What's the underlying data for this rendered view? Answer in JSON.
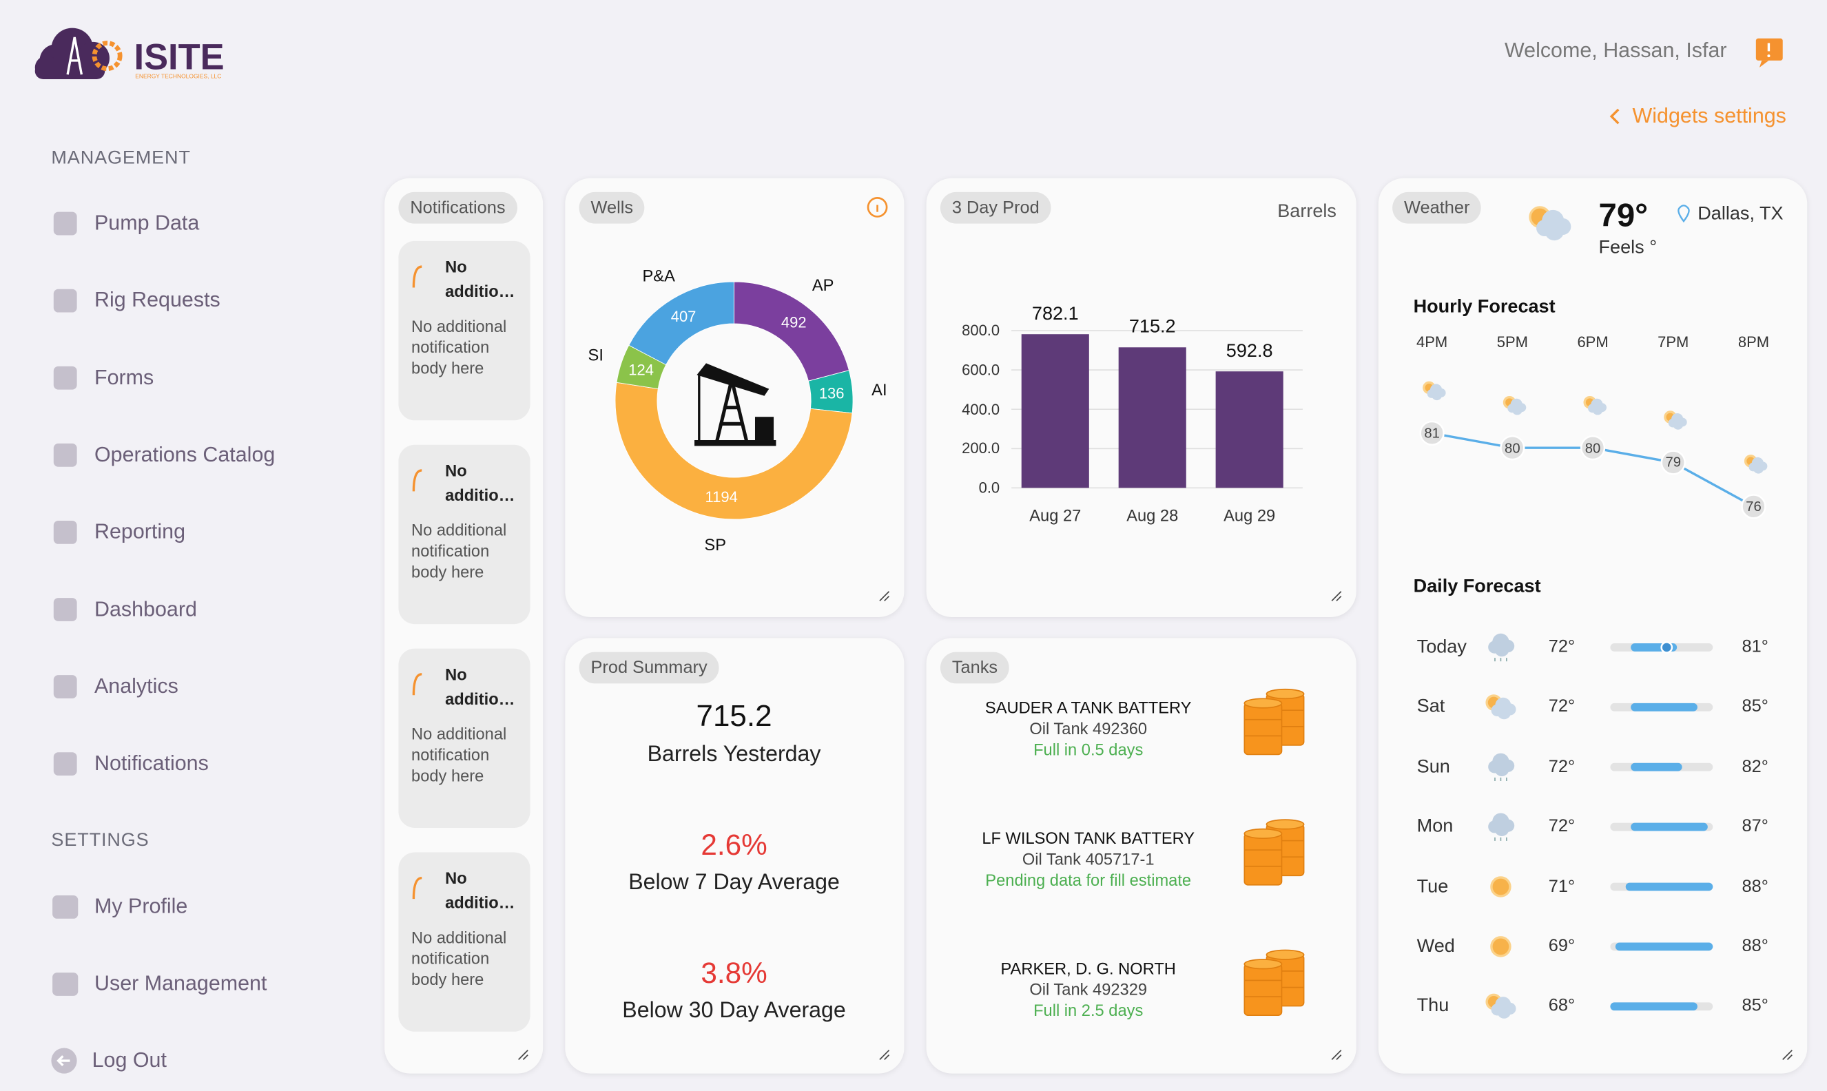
{
  "header": {
    "brand": "ISITE",
    "brand_subtitle": "ENERGY TECHNOLOGIES, LLC",
    "welcome": "Welcome, Hassan, Isfar",
    "widgets_settings": "Widgets settings"
  },
  "sidebar": {
    "management_title": "MANAGEMENT",
    "management_items": [
      "Pump Data",
      "Rig Requests",
      "Forms",
      "Operations Catalog",
      "Reporting",
      "Dashboard",
      "Analytics",
      "Notifications"
    ],
    "settings_title": "SETTINGS",
    "settings_items": [
      "My Profile",
      "User Management"
    ],
    "logout": "Log Out"
  },
  "notifications": {
    "title": "Notifications",
    "items": [
      {
        "title": "No additio…",
        "body": "No additional notification body here"
      },
      {
        "title": "No additio…",
        "body": "No additional notification body here"
      },
      {
        "title": "No additio…",
        "body": "No additional notification body here"
      },
      {
        "title": "No additio…",
        "body": "No additional notification body here"
      }
    ]
  },
  "wells": {
    "title": "Wells",
    "type": "pie",
    "categories": [
      "AP",
      "AI",
      "SP",
      "SI",
      "P&A"
    ],
    "values": [
      492,
      136,
      1194,
      124,
      407
    ],
    "colors": [
      "#7b3f9e",
      "#1ab5a5",
      "#fbb040",
      "#8bc34a",
      "#4ba3e0"
    ]
  },
  "prod": {
    "title": "3 Day Prod",
    "unit": "Barrels",
    "type": "bar",
    "categories": [
      "Aug 27",
      "Aug 28",
      "Aug 29"
    ],
    "values": [
      782.1,
      715.2,
      592.8
    ],
    "color": "#5e3a78",
    "ylim": [
      0,
      800
    ],
    "yticks": [
      {
        "value": 0,
        "label": "0.0"
      },
      {
        "value": 200,
        "label": "200.0"
      },
      {
        "value": 400,
        "label": "400.0"
      },
      {
        "value": 600,
        "label": "600.0"
      },
      {
        "value": 800,
        "label": "800.0"
      }
    ],
    "grid": true
  },
  "prod_summary": {
    "title": "Prod Summary",
    "yesterday": "715.2",
    "yesterday_label": "Barrels Yesterday",
    "avg7": "2.6%",
    "avg7_label": "Below 7 Day Average",
    "avg30": "3.8%",
    "avg30_label": "Below 30 Day Average"
  },
  "tanks": {
    "title": "Tanks",
    "items": [
      {
        "name": "SAUDER A TANK BATTERY",
        "tank": "Oil Tank 492360",
        "status": "Full in 0.5 days"
      },
      {
        "name": "LF WILSON TANK BATTERY",
        "tank": "Oil Tank 405717-1",
        "status": "Pending data for fill estimate"
      },
      {
        "name": "PARKER, D. G. NORTH",
        "tank": "Oil Tank 492329",
        "status": "Full in 2.5 days"
      }
    ]
  },
  "weather": {
    "title": "Weather",
    "temperature": 79,
    "temperature_label": "79°",
    "feels": "Feels °",
    "location": "Dallas, TX",
    "hourly_title": "Hourly Forecast",
    "hours": [
      "4PM",
      "5PM",
      "6PM",
      "7PM",
      "8PM"
    ],
    "hourly_temps": [
      81,
      80,
      80,
      79,
      76
    ],
    "daily_title": "Daily Forecast",
    "days": [
      "Today",
      "Sat",
      "Sun",
      "Mon",
      "Tue",
      "Wed",
      "Thu"
    ],
    "daily_icons": [
      "rain",
      "partly",
      "rain",
      "rain",
      "sun",
      "sun",
      "partly"
    ],
    "lows": [
      72,
      72,
      72,
      72,
      71,
      69,
      68
    ],
    "highs": [
      81,
      85,
      82,
      87,
      88,
      88,
      85
    ],
    "low_labels": [
      "72°",
      "72°",
      "72°",
      "72°",
      "71°",
      "69°",
      "68°"
    ],
    "high_labels": [
      "81°",
      "85°",
      "82°",
      "87°",
      "88°",
      "88°",
      "85°"
    ]
  }
}
